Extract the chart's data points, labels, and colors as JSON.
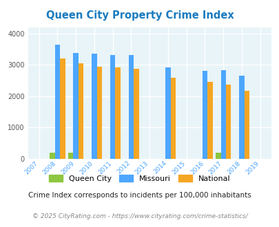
{
  "title": "Queen City Property Crime Index",
  "title_color": "#1a7bbf",
  "years": [
    2007,
    2008,
    2009,
    2010,
    2011,
    2012,
    2013,
    2014,
    2015,
    2016,
    2017,
    2018,
    2019
  ],
  "queen_city": {
    "2008": 190,
    "2009": 190,
    "2017": 195
  },
  "missouri": {
    "2008": 3650,
    "2009": 3390,
    "2010": 3350,
    "2011": 3320,
    "2012": 3320,
    "2014": 2920,
    "2016": 2810,
    "2017": 2840,
    "2018": 2660
  },
  "national": {
    "2008": 3200,
    "2009": 3040,
    "2010": 2950,
    "2011": 2920,
    "2012": 2880,
    "2014": 2600,
    "2016": 2450,
    "2017": 2380,
    "2018": 2170
  },
  "bar_width": 0.28,
  "ylim": [
    0,
    4200
  ],
  "yticks": [
    0,
    1000,
    2000,
    3000,
    4000
  ],
  "color_qc": "#8dc63f",
  "color_mo": "#4da6ff",
  "color_nat": "#f5a623",
  "bg_color": "#e8f4f8",
  "grid_color": "#ffffff",
  "footnote1": "Crime Index corresponds to incidents per 100,000 inhabitants",
  "footnote2": "© 2025 CityRating.com - https://www.cityrating.com/crime-statistics/",
  "legend_labels": [
    "Queen City",
    "Missouri",
    "National"
  ],
  "xtick_color": "#4da6ff",
  "ytick_color": "#555555"
}
